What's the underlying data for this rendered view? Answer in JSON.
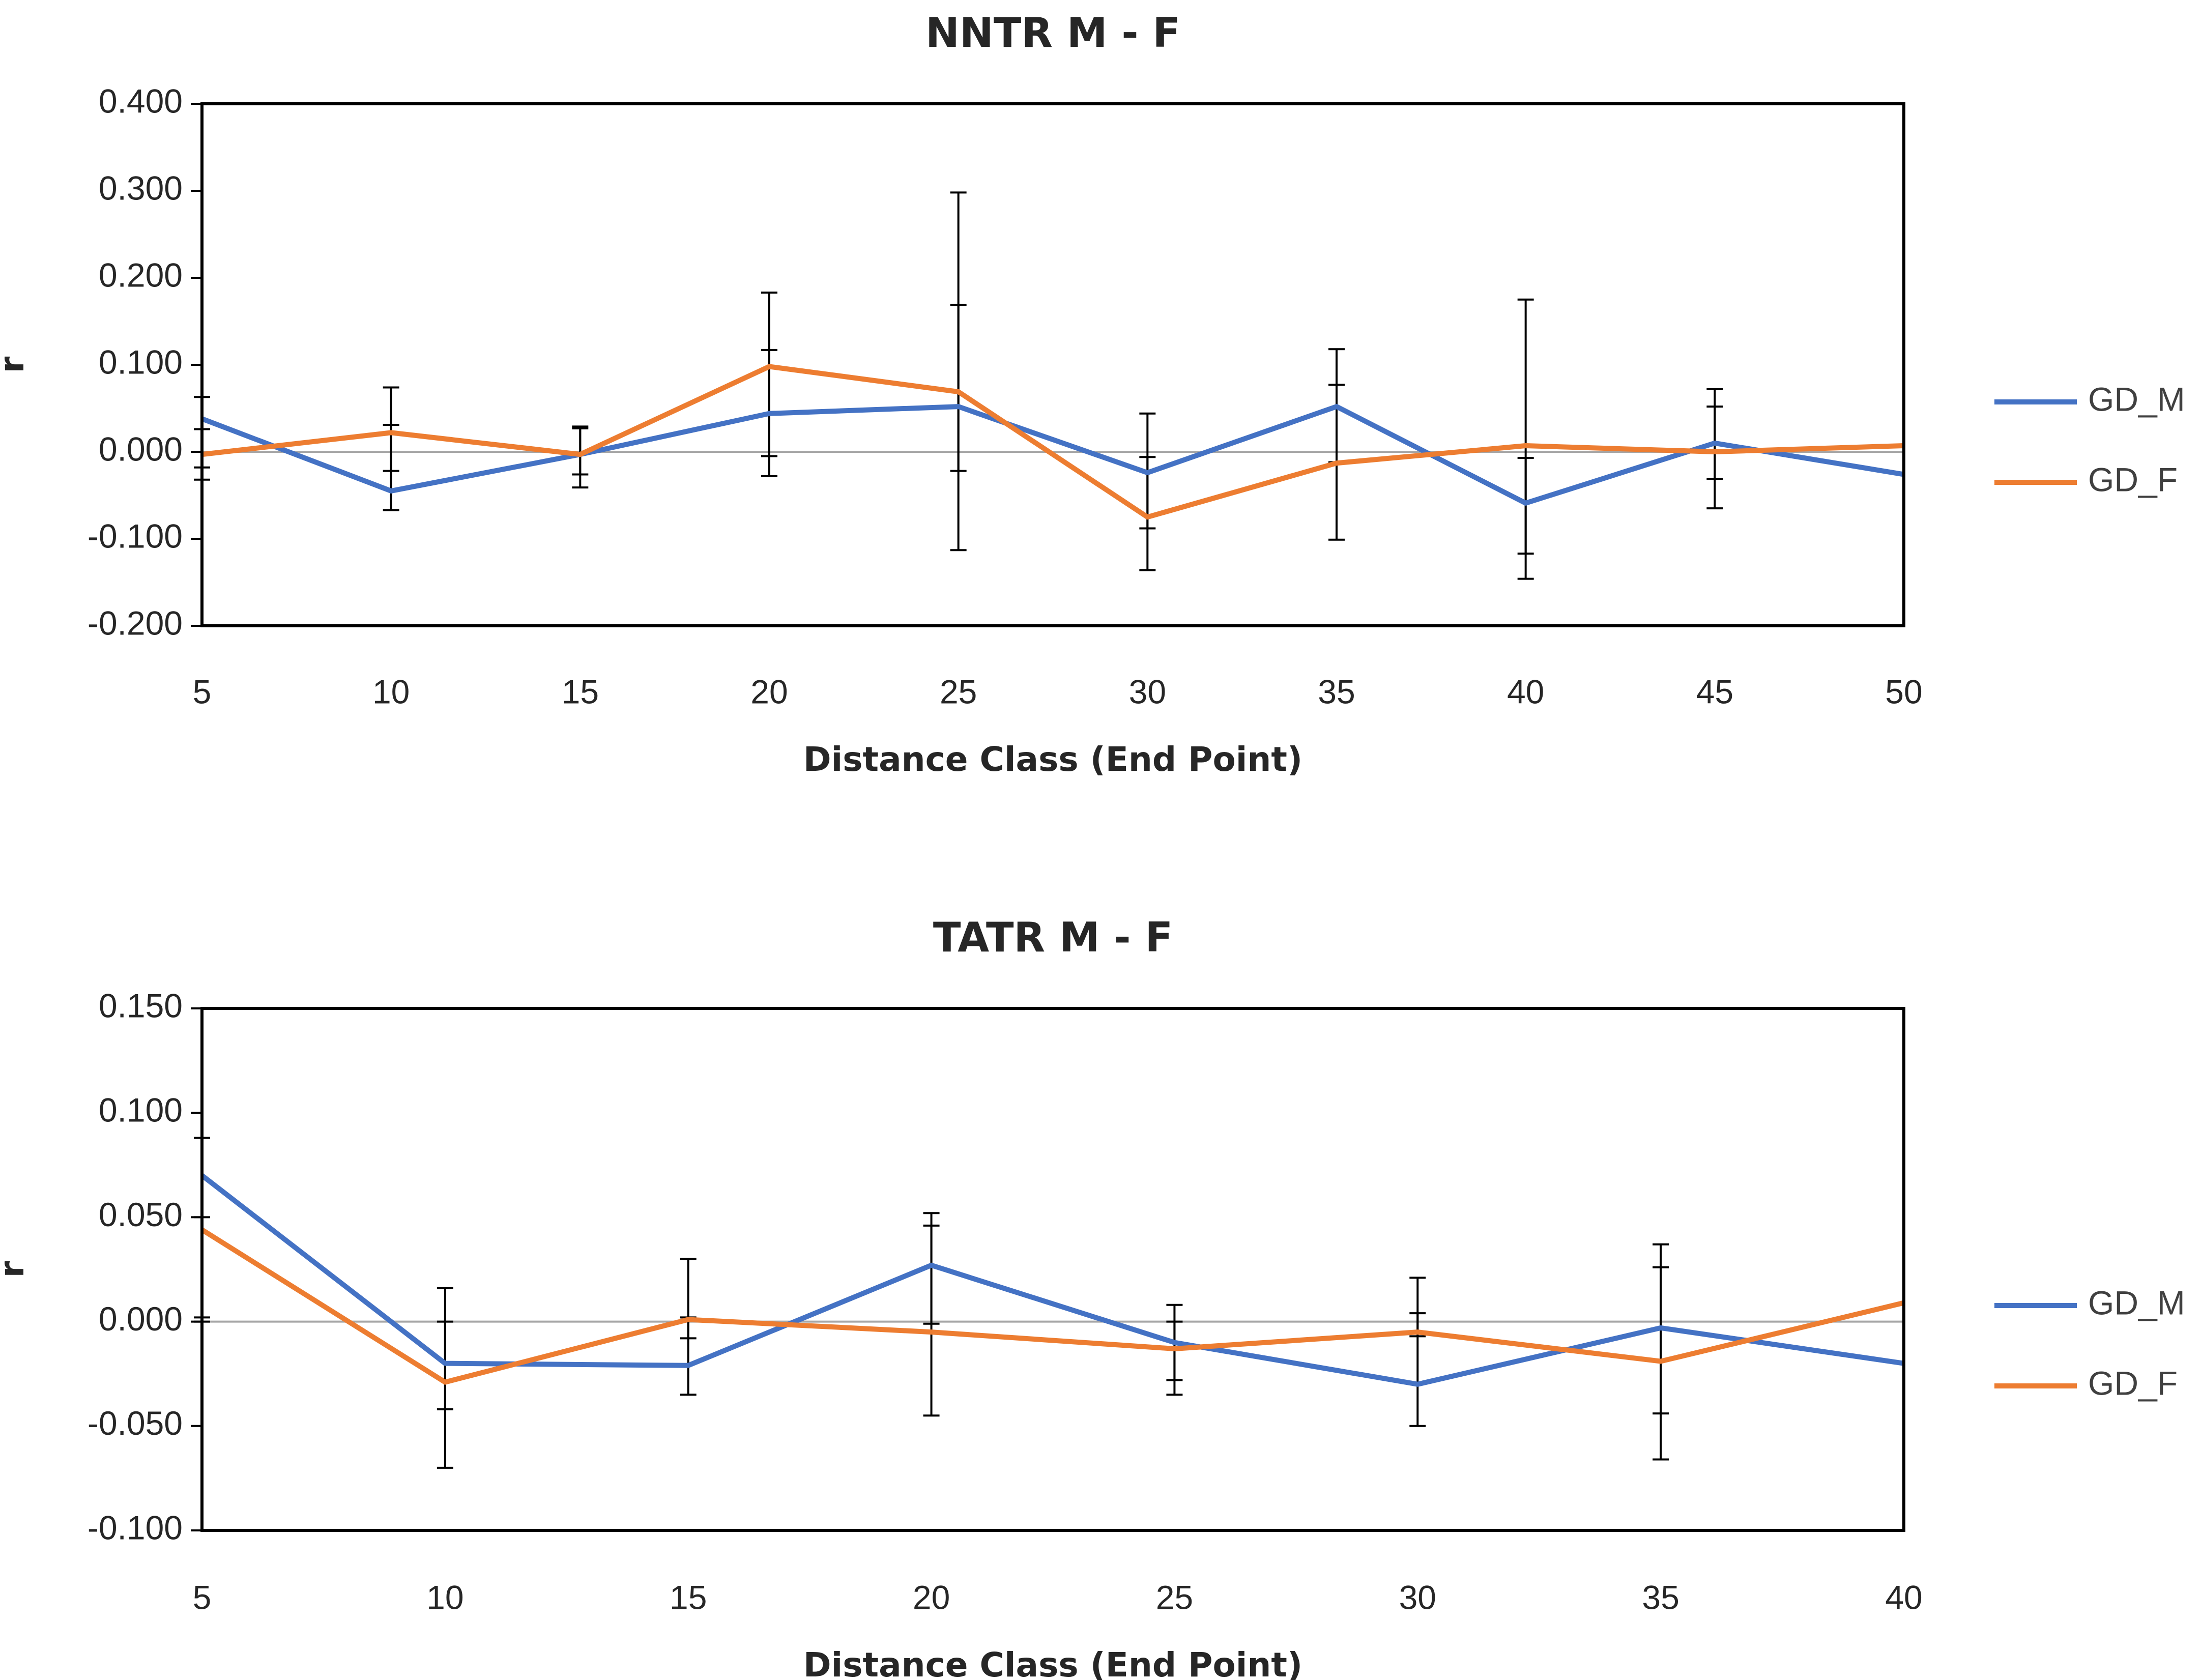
{
  "chart_data": [
    {
      "type": "line",
      "title": "NNTR M - F",
      "xlabel": "Distance Class (End Point)",
      "ylabel": "r",
      "x": [
        5,
        10,
        15,
        20,
        25,
        30,
        35,
        40,
        45,
        50
      ],
      "ylim": [
        -0.2,
        0.4
      ],
      "yticks": [
        -0.2,
        -0.1,
        0.0,
        0.1,
        0.2,
        0.3,
        0.4
      ],
      "ytick_labels": [
        "-0.200",
        "-0.100",
        "0.000",
        "0.100",
        "0.200",
        "0.300",
        "0.400"
      ],
      "xtick_labels": [
        "5",
        "10",
        "15",
        "20",
        "25",
        "30",
        "35",
        "40",
        "45",
        "50"
      ],
      "legend": "right",
      "series": [
        {
          "name": "GD_M",
          "color": "#4472C4",
          "values": [
            0.038,
            -0.045,
            -0.003,
            0.044,
            0.052,
            -0.024,
            0.052,
            -0.059,
            0.01,
            -0.026
          ],
          "err_low": [
            -0.032,
            -0.067,
            -0.041,
            -0.028,
            -0.113,
            -0.088,
            -0.101,
            -0.146,
            -0.065,
            null
          ],
          "err_high": [
            0.063,
            0.074,
            0.029,
            0.117,
            0.298,
            0.044,
            0.118,
            0.175,
            0.072,
            null
          ]
        },
        {
          "name": "GD_F",
          "color": "#ED7D31",
          "values": [
            -0.003,
            0.022,
            -0.003,
            0.098,
            0.069,
            -0.075,
            -0.013,
            0.007,
            0.0,
            0.007
          ],
          "err_low": [
            -0.018,
            -0.022,
            -0.026,
            -0.005,
            -0.022,
            -0.136,
            -0.012,
            -0.117,
            -0.031,
            null
          ],
          "err_high": [
            0.026,
            0.031,
            0.027,
            0.183,
            0.169,
            -0.006,
            0.077,
            -0.007,
            0.052,
            null
          ]
        }
      ]
    },
    {
      "type": "line",
      "title": "TATR M - F",
      "xlabel": "Distance Class (End Point)",
      "ylabel": "r",
      "x": [
        5,
        10,
        15,
        20,
        25,
        30,
        35,
        40
      ],
      "ylim": [
        -0.1,
        0.15
      ],
      "yticks": [
        -0.1,
        -0.05,
        0.0,
        0.05,
        0.1,
        0.15
      ],
      "ytick_labels": [
        "-0.100",
        "-0.050",
        "0.000",
        "0.050",
        "0.100",
        "0.150"
      ],
      "xtick_labels": [
        "5",
        "10",
        "15",
        "20",
        "25",
        "30",
        "35",
        "40"
      ],
      "legend": "right",
      "series": [
        {
          "name": "GD_M",
          "color": "#4472C4",
          "values": [
            0.07,
            -0.02,
            -0.021,
            0.027,
            -0.01,
            -0.03,
            -0.003,
            -0.02
          ],
          "err_low": [
            0.002,
            -0.07,
            -0.035,
            -0.045,
            -0.035,
            -0.05,
            -0.066,
            null
          ],
          "err_high": [
            0.088,
            0.016,
            0.03,
            0.052,
            0.008,
            0.021,
            0.037,
            null
          ]
        },
        {
          "name": "GD_F",
          "color": "#ED7D31",
          "values": [
            0.044,
            -0.029,
            0.001,
            -0.005,
            -0.013,
            -0.005,
            -0.019,
            0.009
          ],
          "err_low": [
            0.0,
            -0.042,
            -0.008,
            -0.001,
            -0.028,
            -0.007,
            -0.044,
            null
          ],
          "err_high": [
            0.05,
            0.0,
            0.002,
            0.046,
            0.0,
            0.004,
            0.026,
            null
          ]
        }
      ]
    }
  ]
}
